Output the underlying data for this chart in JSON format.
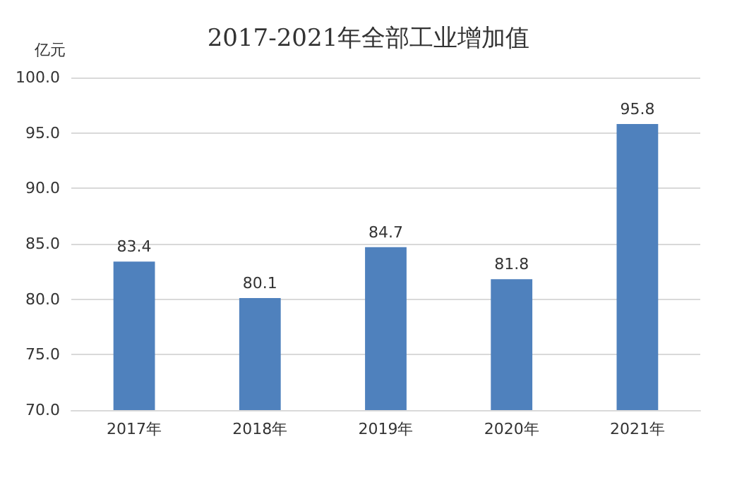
{
  "chart_data": {
    "type": "bar",
    "title": "2017-2021年全部工业增加值",
    "ylabel": "亿元",
    "categories": [
      "2017年",
      "2018年",
      "2019年",
      "2020年",
      "2021年"
    ],
    "values": [
      83.4,
      80.1,
      84.7,
      81.8,
      95.8
    ],
    "color": "#4f81bd",
    "data_labels": true,
    "ylim": [
      70,
      100
    ],
    "yticks": [
      {
        "value": 70,
        "label": "70.0"
      },
      {
        "value": 75,
        "label": "75.0"
      },
      {
        "value": 80,
        "label": "80.0"
      },
      {
        "value": 85,
        "label": "85.0"
      },
      {
        "value": 90,
        "label": "90.0"
      },
      {
        "value": 95,
        "label": "95.0"
      },
      {
        "value": 100,
        "label": "100.0"
      }
    ],
    "grid": "y"
  }
}
